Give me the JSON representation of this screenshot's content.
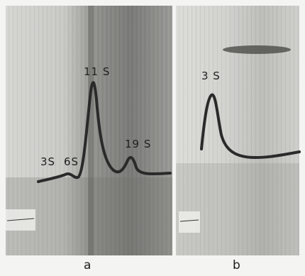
{
  "panels": [
    {
      "letter": "a",
      "peaks": [
        "3S",
        "6S",
        "11 S",
        "19 S"
      ]
    },
    {
      "letter": "b",
      "peaks": [
        "3 S"
      ]
    }
  ],
  "colors": {
    "background": "#f4f4f2",
    "trace": "#2a2a2a",
    "photo_dark": "#5a5a5a",
    "photo_light": "#d8d8d6"
  }
}
